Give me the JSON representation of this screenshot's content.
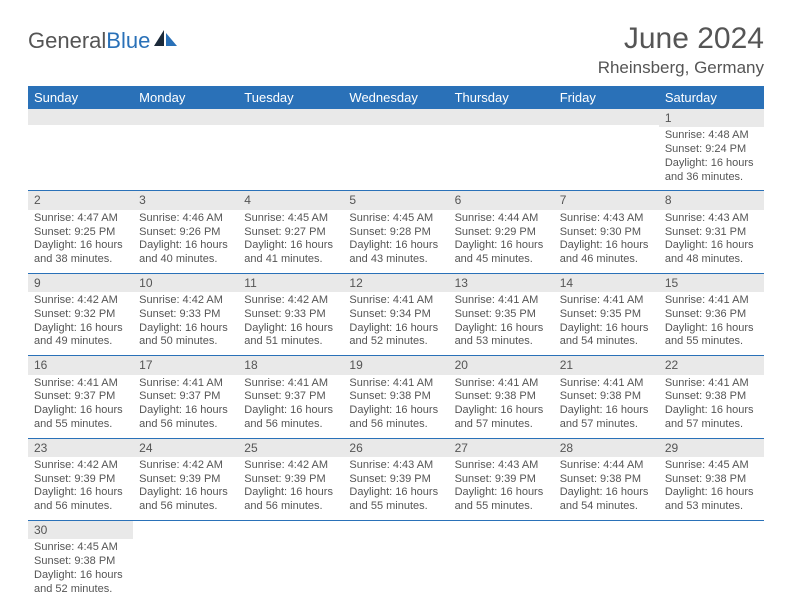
{
  "logo": {
    "text1": "General",
    "text2": "Blue"
  },
  "title": "June 2024",
  "location": "Rheinsberg, Germany",
  "colors": {
    "header_bg": "#2a71b8",
    "header_text": "#ffffff",
    "daynum_bg": "#e9e9e9",
    "border": "#2a71b8",
    "text": "#555555",
    "page_bg": "#ffffff"
  },
  "fonts": {
    "title_size": 30,
    "location_size": 17,
    "dayhead_size": 13,
    "cell_size": 11
  },
  "day_headers": [
    "Sunday",
    "Monday",
    "Tuesday",
    "Wednesday",
    "Thursday",
    "Friday",
    "Saturday"
  ],
  "weeks": [
    [
      null,
      null,
      null,
      null,
      null,
      null,
      {
        "n": "1",
        "sunrise": "4:48 AM",
        "sunset": "9:24 PM",
        "daylight": "16 hours and 36 minutes."
      }
    ],
    [
      {
        "n": "2",
        "sunrise": "4:47 AM",
        "sunset": "9:25 PM",
        "daylight": "16 hours and 38 minutes."
      },
      {
        "n": "3",
        "sunrise": "4:46 AM",
        "sunset": "9:26 PM",
        "daylight": "16 hours and 40 minutes."
      },
      {
        "n": "4",
        "sunrise": "4:45 AM",
        "sunset": "9:27 PM",
        "daylight": "16 hours and 41 minutes."
      },
      {
        "n": "5",
        "sunrise": "4:45 AM",
        "sunset": "9:28 PM",
        "daylight": "16 hours and 43 minutes."
      },
      {
        "n": "6",
        "sunrise": "4:44 AM",
        "sunset": "9:29 PM",
        "daylight": "16 hours and 45 minutes."
      },
      {
        "n": "7",
        "sunrise": "4:43 AM",
        "sunset": "9:30 PM",
        "daylight": "16 hours and 46 minutes."
      },
      {
        "n": "8",
        "sunrise": "4:43 AM",
        "sunset": "9:31 PM",
        "daylight": "16 hours and 48 minutes."
      }
    ],
    [
      {
        "n": "9",
        "sunrise": "4:42 AM",
        "sunset": "9:32 PM",
        "daylight": "16 hours and 49 minutes."
      },
      {
        "n": "10",
        "sunrise": "4:42 AM",
        "sunset": "9:33 PM",
        "daylight": "16 hours and 50 minutes."
      },
      {
        "n": "11",
        "sunrise": "4:42 AM",
        "sunset": "9:33 PM",
        "daylight": "16 hours and 51 minutes."
      },
      {
        "n": "12",
        "sunrise": "4:41 AM",
        "sunset": "9:34 PM",
        "daylight": "16 hours and 52 minutes."
      },
      {
        "n": "13",
        "sunrise": "4:41 AM",
        "sunset": "9:35 PM",
        "daylight": "16 hours and 53 minutes."
      },
      {
        "n": "14",
        "sunrise": "4:41 AM",
        "sunset": "9:35 PM",
        "daylight": "16 hours and 54 minutes."
      },
      {
        "n": "15",
        "sunrise": "4:41 AM",
        "sunset": "9:36 PM",
        "daylight": "16 hours and 55 minutes."
      }
    ],
    [
      {
        "n": "16",
        "sunrise": "4:41 AM",
        "sunset": "9:37 PM",
        "daylight": "16 hours and 55 minutes."
      },
      {
        "n": "17",
        "sunrise": "4:41 AM",
        "sunset": "9:37 PM",
        "daylight": "16 hours and 56 minutes."
      },
      {
        "n": "18",
        "sunrise": "4:41 AM",
        "sunset": "9:37 PM",
        "daylight": "16 hours and 56 minutes."
      },
      {
        "n": "19",
        "sunrise": "4:41 AM",
        "sunset": "9:38 PM",
        "daylight": "16 hours and 56 minutes."
      },
      {
        "n": "20",
        "sunrise": "4:41 AM",
        "sunset": "9:38 PM",
        "daylight": "16 hours and 57 minutes."
      },
      {
        "n": "21",
        "sunrise": "4:41 AM",
        "sunset": "9:38 PM",
        "daylight": "16 hours and 57 minutes."
      },
      {
        "n": "22",
        "sunrise": "4:41 AM",
        "sunset": "9:38 PM",
        "daylight": "16 hours and 57 minutes."
      }
    ],
    [
      {
        "n": "23",
        "sunrise": "4:42 AM",
        "sunset": "9:39 PM",
        "daylight": "16 hours and 56 minutes."
      },
      {
        "n": "24",
        "sunrise": "4:42 AM",
        "sunset": "9:39 PM",
        "daylight": "16 hours and 56 minutes."
      },
      {
        "n": "25",
        "sunrise": "4:42 AM",
        "sunset": "9:39 PM",
        "daylight": "16 hours and 56 minutes."
      },
      {
        "n": "26",
        "sunrise": "4:43 AM",
        "sunset": "9:39 PM",
        "daylight": "16 hours and 55 minutes."
      },
      {
        "n": "27",
        "sunrise": "4:43 AM",
        "sunset": "9:39 PM",
        "daylight": "16 hours and 55 minutes."
      },
      {
        "n": "28",
        "sunrise": "4:44 AM",
        "sunset": "9:38 PM",
        "daylight": "16 hours and 54 minutes."
      },
      {
        "n": "29",
        "sunrise": "4:45 AM",
        "sunset": "9:38 PM",
        "daylight": "16 hours and 53 minutes."
      }
    ],
    [
      {
        "n": "30",
        "sunrise": "4:45 AM",
        "sunset": "9:38 PM",
        "daylight": "16 hours and 52 minutes."
      },
      null,
      null,
      null,
      null,
      null,
      null
    ]
  ],
  "labels": {
    "sunrise": "Sunrise: ",
    "sunset": "Sunset: ",
    "daylight": "Daylight: "
  }
}
